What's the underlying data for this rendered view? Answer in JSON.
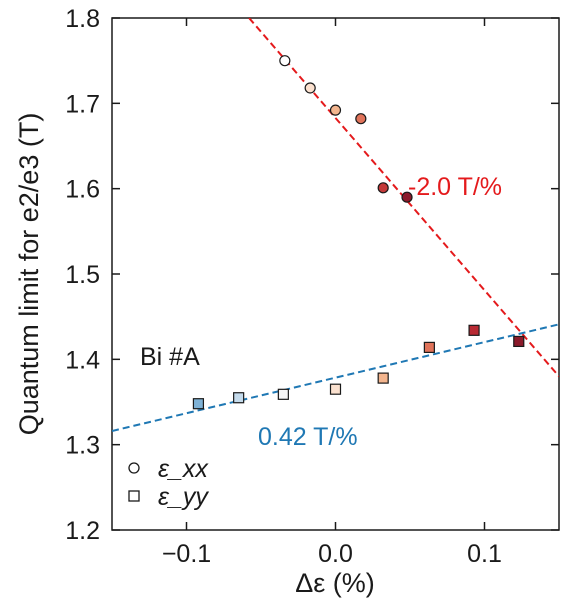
{
  "chart_data": {
    "type": "scatter",
    "xlabel": "Δε (%)",
    "ylabel": "Quantum limit for e2/e3 (T)",
    "xlim": [
      -0.15,
      0.15
    ],
    "ylim": [
      1.2,
      1.8
    ],
    "xticks": [
      -0.1,
      0.0,
      0.1
    ],
    "xtick_labels": [
      "−0.1",
      "0.0",
      "0.1"
    ],
    "yticks": [
      1.2,
      1.3,
      1.4,
      1.5,
      1.6,
      1.7,
      1.8
    ],
    "ytick_labels": [
      "1.2",
      "1.3",
      "1.4",
      "1.5",
      "1.6",
      "1.7",
      "1.8"
    ],
    "grid": false,
    "series": [
      {
        "name": "ε_xx",
        "marker": "circle",
        "points": [
          {
            "x": -0.034,
            "y": 1.75,
            "color": "#ffffff"
          },
          {
            "x": -0.017,
            "y": 1.718,
            "color": "#fbe1cf"
          },
          {
            "x": 0.0,
            "y": 1.692,
            "color": "#f3b58e"
          },
          {
            "x": 0.017,
            "y": 1.682,
            "color": "#e0735a"
          },
          {
            "x": 0.032,
            "y": 1.601,
            "color": "#c43a3a"
          },
          {
            "x": 0.048,
            "y": 1.59,
            "color": "#8b1a2b"
          }
        ]
      },
      {
        "name": "ε_yy",
        "marker": "square",
        "points": [
          {
            "x": -0.092,
            "y": 1.348,
            "color": "#7fb2d6"
          },
          {
            "x": -0.065,
            "y": 1.355,
            "color": "#c5dbec"
          },
          {
            "x": -0.035,
            "y": 1.359,
            "color": "#f4f4f4"
          },
          {
            "x": 0.0,
            "y": 1.365,
            "color": "#fbe1cf"
          },
          {
            "x": 0.032,
            "y": 1.378,
            "color": "#f3b58e"
          },
          {
            "x": 0.063,
            "y": 1.414,
            "color": "#e0735a"
          },
          {
            "x": 0.093,
            "y": 1.434,
            "color": "#b82a33"
          },
          {
            "x": 0.123,
            "y": 1.421,
            "color": "#8b1a2b"
          }
        ]
      }
    ],
    "fit_lines": [
      {
        "label": "-2.0 T/%",
        "color": "#e41a1c",
        "x": [
          -0.058,
          0.15
        ],
        "y": [
          1.8,
          1.38
        ]
      },
      {
        "label": "0.42 T/%",
        "color": "#1f78b4",
        "x": [
          -0.15,
          0.15
        ],
        "y": [
          1.316,
          1.441
        ]
      }
    ],
    "annotations": [
      {
        "text": "Bi #A",
        "x": -0.14,
        "y": 1.38
      }
    ],
    "legend": {
      "placement": "bottom-left",
      "entries": [
        "ε_xx",
        "ε_yy"
      ]
    }
  }
}
